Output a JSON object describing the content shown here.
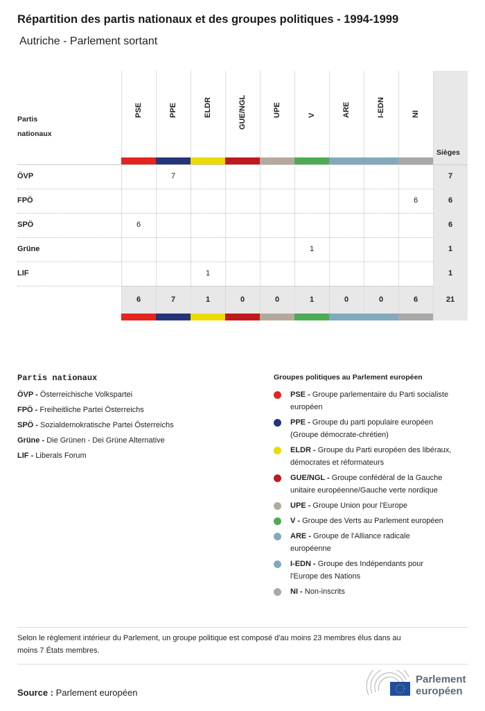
{
  "title": "Répartition des partis nationaux et des groupes politiques - 1994-1999",
  "subtitle": "Autriche - Parlement sortant",
  "chart_data": {
    "type": "table",
    "row_header": "Partis nationaux",
    "total_header": "Sièges",
    "columns": [
      {
        "name": "PSE",
        "color": "#e3241f"
      },
      {
        "name": "PPE",
        "color": "#263479"
      },
      {
        "name": "ELDR",
        "color": "#ecdb00"
      },
      {
        "name": "GUE/NGL",
        "color": "#c0191c"
      },
      {
        "name": "UPE",
        "color": "#b3aa9d"
      },
      {
        "name": "V",
        "color": "#4eab55"
      },
      {
        "name": "ARE",
        "color": "#82a9bd"
      },
      {
        "name": "I-EDN",
        "color": "#82a9bd"
      },
      {
        "name": "NI",
        "color": "#a8a8a8"
      }
    ],
    "rows": [
      {
        "party": "ÖVP",
        "values": [
          null,
          7,
          null,
          null,
          null,
          null,
          null,
          null,
          null
        ],
        "total": 7
      },
      {
        "party": "FPÖ",
        "values": [
          null,
          null,
          null,
          null,
          null,
          null,
          null,
          null,
          6
        ],
        "total": 6
      },
      {
        "party": "SPÖ",
        "values": [
          6,
          null,
          null,
          null,
          null,
          null,
          null,
          null,
          null
        ],
        "total": 6
      },
      {
        "party": "Grüne",
        "values": [
          null,
          null,
          null,
          null,
          null,
          1,
          null,
          null,
          null
        ],
        "total": 1
      },
      {
        "party": "LIF",
        "values": [
          null,
          null,
          1,
          null,
          null,
          null,
          null,
          null,
          null
        ],
        "total": 1
      }
    ],
    "column_totals": [
      6,
      7,
      1,
      0,
      0,
      1,
      0,
      0,
      6
    ],
    "grand_total": 21
  },
  "legend_parties": {
    "title": "Partis nationaux",
    "items": [
      {
        "abbr": "ÖVP -",
        "name": "Österreichische Volkspartei"
      },
      {
        "abbr": "FPÖ -",
        "name": "Freiheitliche Partei Österreichs"
      },
      {
        "abbr": "SPÖ -",
        "name": "Sozialdemokratische Partei Österreichs"
      },
      {
        "abbr": "Grüne -",
        "name": "Die Grünen - Dei Grüne Alternative"
      },
      {
        "abbr": "LIF -",
        "name": "Liberals Forum"
      }
    ]
  },
  "legend_groups": {
    "title": "Groupes politiques au Parlement européen",
    "items": [
      {
        "abbr": "PSE -",
        "name": "Groupe parlementaire du Parti socialiste",
        "name2": "européen",
        "color": "#e3241f"
      },
      {
        "abbr": "PPE -",
        "name": "Groupe du parti populaire européen",
        "name2": "(Groupe démocrate-chrétien)",
        "color": "#263479"
      },
      {
        "abbr": "ELDR -",
        "name": "Groupe du Parti européen des libéraux,",
        "name2": "démocrates et réformateurs",
        "color": "#ecdb00"
      },
      {
        "abbr": "GUE/NGL -",
        "name": "Groupe confédéral de la Gauche",
        "name2": "unitaire européenne/Gauche verte nordique",
        "color": "#c0191c"
      },
      {
        "abbr": "UPE -",
        "name": "Groupe Union pour l'Europe",
        "name2": null,
        "color": "#b3aa9d"
      },
      {
        "abbr": "V -",
        "name": "Groupe des Verts au Parlement européen",
        "name2": null,
        "color": "#4eab55"
      },
      {
        "abbr": "ARE -",
        "name": "Groupe de l'Alliance radicale",
        "name2": "européenne",
        "color": "#82a9bd"
      },
      {
        "abbr": "I-EDN -",
        "name": "Groupe des Indépendants pour",
        "name2": "l'Europe des Nations",
        "color": "#82a9bd"
      },
      {
        "abbr": "NI -",
        "name": "Non-inscrits",
        "name2": null,
        "color": "#a8a8a8"
      }
    ]
  },
  "note_line1": "Selon le règlement intérieur du Parlement, un groupe politique est composé d'au moins 23 membres élus dans au",
  "note_line2": "moins 7 États membres.",
  "source_label": "Source :",
  "source_value": "Parlement européen",
  "logo_text": {
    "line1": "Parlement",
    "line2": "européen"
  }
}
